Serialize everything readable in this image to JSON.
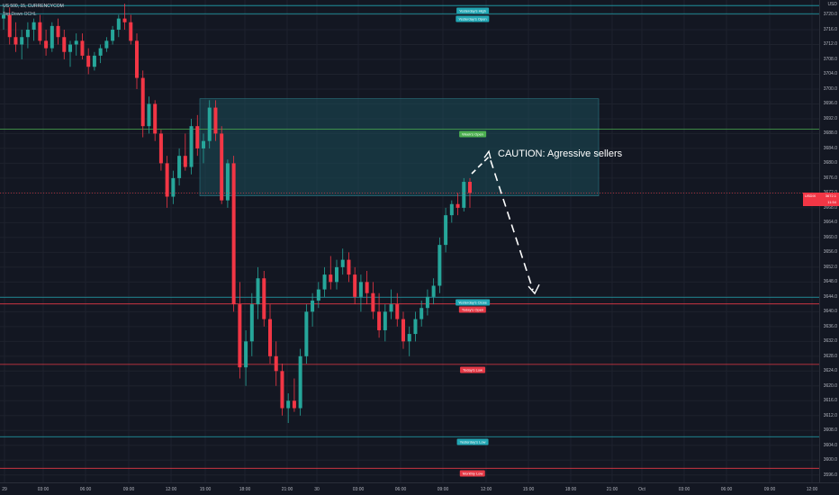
{
  "header": {
    "symbol_title": "US 500, 15, CURRENCYCOM",
    "indicator_name": "Top Down OCHL"
  },
  "colors": {
    "background": "#131722",
    "bull": "#26a69a",
    "bear": "#f23645",
    "zone": "#1c4d57",
    "cyan_line": "#22a6b3",
    "green_line": "#4caf50",
    "red_line": "#e53946"
  },
  "annotation": {
    "text": "CAUTION: Agressive sellers"
  },
  "price_badge": {
    "symbol": "USDIX",
    "price": "3672.1",
    "countdown": "11:54"
  },
  "levels": [
    {
      "label": "Yesterday's High",
      "price": 3722.5,
      "color": "cyan"
    },
    {
      "label": "Yesterday's Open",
      "price": 3720.3,
      "color": "cyan"
    },
    {
      "label": "Week's Open",
      "price": 3689.2,
      "color": "green"
    },
    {
      "label": "Yesterday's Close",
      "price": 3643.9,
      "color": "cyan"
    },
    {
      "label": "Today's Open",
      "price": 3642.1,
      "color": "red"
    },
    {
      "label": "Today's Low",
      "price": 3625.8,
      "color": "red"
    },
    {
      "label": "Yesterday's Low",
      "price": 3606.3,
      "color": "cyan"
    },
    {
      "label": "Monthly Low",
      "price": 3597.8,
      "color": "red"
    }
  ],
  "y_axis": {
    "ticks": [
      "USD",
      "3720.0",
      "3716.0",
      "3712.0",
      "3708.0",
      "3704.0",
      "3700.0",
      "3696.0",
      "3692.0",
      "3688.0",
      "3684.0",
      "3680.0",
      "3676.0",
      "3672.0",
      "3668.0",
      "3664.0",
      "3660.0",
      "3656.0",
      "3652.0",
      "3648.0",
      "3644.0",
      "3640.0",
      "3636.0",
      "3632.0",
      "3628.0",
      "3624.0",
      "3620.0",
      "3616.0",
      "3612.0",
      "3608.0",
      "3604.0",
      "3600.0",
      "3596.0"
    ]
  },
  "x_axis": {
    "ticks": [
      "29",
      "03:00",
      "06:00",
      "09:00",
      "12:00",
      "15:00",
      "18:00",
      "21:00",
      "30",
      "03:00",
      "06:00",
      "09:00",
      "12:00",
      "15:00",
      "18:00",
      "21:00",
      "Oct",
      "03:00",
      "06:00",
      "09:00",
      "12:00"
    ]
  },
  "chart_data": {
    "type": "candlestick",
    "interval": "15",
    "ylim": [
      3594,
      3724
    ],
    "zone": {
      "top": 3697.4,
      "bottom": 3671.2
    },
    "projection_arrow": {
      "from": 3683.2,
      "to": 3644.9
    },
    "candles": [
      [
        3719,
        3722,
        3716,
        3720
      ],
      [
        3720,
        3722,
        3712,
        3714
      ],
      [
        3714,
        3718,
        3710,
        3712
      ],
      [
        3712,
        3716,
        3708,
        3714
      ],
      [
        3714,
        3718,
        3711,
        3716
      ],
      [
        3716,
        3719,
        3713,
        3718
      ],
      [
        3718,
        3720,
        3712,
        3713
      ],
      [
        3713,
        3716,
        3709,
        3711
      ],
      [
        3711,
        3718,
        3710,
        3717
      ],
      [
        3717,
        3719,
        3712,
        3714
      ],
      [
        3714,
        3716,
        3708,
        3710
      ],
      [
        3710,
        3713,
        3706,
        3712
      ],
      [
        3712,
        3715,
        3709,
        3713
      ],
      [
        3713,
        3715,
        3708,
        3709
      ],
      [
        3709,
        3711,
        3704,
        3706
      ],
      [
        3706,
        3710,
        3705,
        3709
      ],
      [
        3709,
        3712,
        3707,
        3711
      ],
      [
        3711,
        3714,
        3710,
        3713
      ],
      [
        3713,
        3717,
        3712,
        3716
      ],
      [
        3716,
        3720,
        3714,
        3719
      ],
      [
        3719,
        3723,
        3716,
        3718
      ],
      [
        3718,
        3720,
        3712,
        3713
      ],
      [
        3713,
        3715,
        3700,
        3703
      ],
      [
        3703,
        3705,
        3687,
        3690
      ],
      [
        3690,
        3698,
        3688,
        3696
      ],
      [
        3696,
        3697,
        3686,
        3688
      ],
      [
        3688,
        3689,
        3678,
        3680
      ],
      [
        3680,
        3682,
        3668,
        3671
      ],
      [
        3671,
        3678,
        3669,
        3676
      ],
      [
        3676,
        3684,
        3674,
        3682
      ],
      [
        3682,
        3688,
        3678,
        3679
      ],
      [
        3679,
        3692,
        3677,
        3690
      ],
      [
        3690,
        3693,
        3682,
        3684
      ],
      [
        3684,
        3688,
        3680,
        3686
      ],
      [
        3686,
        3697,
        3684,
        3695
      ],
      [
        3695,
        3697,
        3686,
        3688
      ],
      [
        3688,
        3690,
        3669,
        3670
      ],
      [
        3670,
        3681,
        3668,
        3680
      ],
      [
        3680,
        3682,
        3640,
        3642
      ],
      [
        3642,
        3648,
        3622,
        3625
      ],
      [
        3625,
        3635,
        3620,
        3632
      ],
      [
        3632,
        3645,
        3628,
        3642
      ],
      [
        3642,
        3652,
        3638,
        3649
      ],
      [
        3649,
        3651,
        3636,
        3638
      ],
      [
        3638,
        3642,
        3626,
        3628
      ],
      [
        3628,
        3632,
        3620,
        3624
      ],
      [
        3624,
        3626,
        3612,
        3614
      ],
      [
        3614,
        3618,
        3610,
        3616
      ],
      [
        3616,
        3622,
        3613,
        3614
      ],
      [
        3614,
        3630,
        3612,
        3628
      ],
      [
        3628,
        3642,
        3626,
        3640
      ],
      [
        3640,
        3645,
        3636,
        3643
      ],
      [
        3643,
        3648,
        3641,
        3646
      ],
      [
        3646,
        3652,
        3644,
        3650
      ],
      [
        3650,
        3655,
        3646,
        3648
      ],
      [
        3648,
        3654,
        3646,
        3652
      ],
      [
        3652,
        3657,
        3650,
        3654
      ],
      [
        3654,
        3656,
        3648,
        3650
      ],
      [
        3650,
        3652,
        3642,
        3644
      ],
      [
        3644,
        3650,
        3640,
        3648
      ],
      [
        3648,
        3651,
        3642,
        3645
      ],
      [
        3645,
        3648,
        3638,
        3640
      ],
      [
        3640,
        3645,
        3633,
        3635
      ],
      [
        3635,
        3642,
        3632,
        3640
      ],
      [
        3640,
        3646,
        3638,
        3642
      ],
      [
        3642,
        3645,
        3636,
        3638
      ],
      [
        3638,
        3640,
        3630,
        3632
      ],
      [
        3632,
        3636,
        3628,
        3634
      ],
      [
        3634,
        3640,
        3632,
        3638
      ],
      [
        3638,
        3643,
        3636,
        3641
      ],
      [
        3641,
        3646,
        3639,
        3644
      ],
      [
        3644,
        3649,
        3642,
        3647
      ],
      [
        3647,
        3660,
        3645,
        3658
      ],
      [
        3658,
        3668,
        3656,
        3666
      ],
      [
        3666,
        3670,
        3664,
        3669
      ],
      [
        3669,
        3672,
        3666,
        3668
      ],
      [
        3668,
        3676,
        3667,
        3675
      ],
      [
        3675,
        3676,
        3668,
        3672
      ]
    ]
  }
}
